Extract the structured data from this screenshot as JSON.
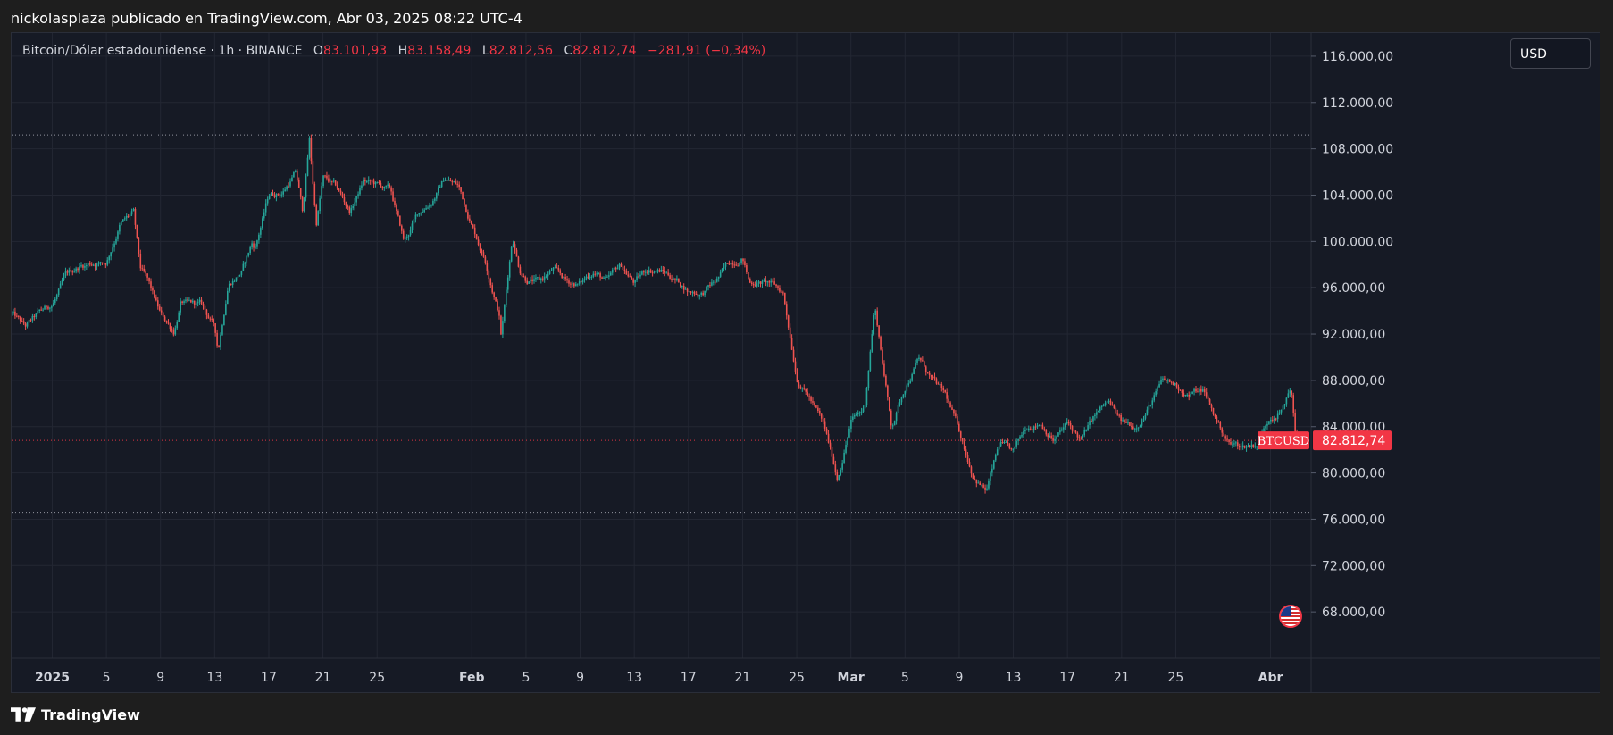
{
  "header": {
    "attribution": "nickolasplaza publicado en TradingView.com, Abr 03, 2025 08:22 UTC-4"
  },
  "legend": {
    "symbol": "Bitcoin/Dólar estadounidense · 1h · BINANCE",
    "open_label": "O",
    "open": "83.101,93",
    "high_label": "H",
    "high": "83.158,49",
    "low_label": "L",
    "low": "82.812,56",
    "close_label": "C",
    "close": "82.812,74",
    "change": "−281,91 (−0,34%)"
  },
  "currency_selector": {
    "label": "USD"
  },
  "price_tag": {
    "symbol": "BTCUSD",
    "price": "82.812,74",
    "value": 82812.74
  },
  "footer": {
    "brand": "TradingView"
  },
  "colors": {
    "up": "#26a69a",
    "down": "#ef5350",
    "price_tag": "#f23645",
    "background": "#161a25",
    "grid": "#232733",
    "axis_text": "#d1d4dc"
  },
  "chart_data": {
    "type": "candlestick",
    "ylim": [
      64000,
      118000
    ],
    "y_ticks": [
      {
        "value": 116000,
        "label": "116.000,00"
      },
      {
        "value": 112000,
        "label": "112.000,00"
      },
      {
        "value": 108000,
        "label": "108.000,00"
      },
      {
        "value": 104000,
        "label": "104.000,00"
      },
      {
        "value": 100000,
        "label": "100.000,00"
      },
      {
        "value": 96000,
        "label": "96.000,00"
      },
      {
        "value": 92000,
        "label": "92.000,00"
      },
      {
        "value": 88000,
        "label": "88.000,00"
      },
      {
        "value": 84000,
        "label": "84.000,00"
      },
      {
        "value": 80000,
        "label": "80.000,00"
      },
      {
        "value": 76000,
        "label": "76.000,00"
      },
      {
        "value": 72000,
        "label": "72.000,00"
      },
      {
        "value": 68000,
        "label": "68.000,00"
      }
    ],
    "x_range": [
      "2024-12-29",
      "2025-04-04"
    ],
    "x_ticks": [
      {
        "date": "2025-01-01",
        "label": "2025"
      },
      {
        "date": "2025-01-05",
        "label": "5"
      },
      {
        "date": "2025-01-09",
        "label": "9"
      },
      {
        "date": "2025-01-13",
        "label": "13"
      },
      {
        "date": "2025-01-17",
        "label": "17"
      },
      {
        "date": "2025-01-21",
        "label": "21"
      },
      {
        "date": "2025-01-25",
        "label": "25"
      },
      {
        "date": "2025-02-01",
        "label": "Feb"
      },
      {
        "date": "2025-02-05",
        "label": "5"
      },
      {
        "date": "2025-02-09",
        "label": "9"
      },
      {
        "date": "2025-02-13",
        "label": "13"
      },
      {
        "date": "2025-02-17",
        "label": "17"
      },
      {
        "date": "2025-02-21",
        "label": "21"
      },
      {
        "date": "2025-02-25",
        "label": "25"
      },
      {
        "date": "2025-03-01",
        "label": "Mar"
      },
      {
        "date": "2025-03-05",
        "label": "5"
      },
      {
        "date": "2025-03-09",
        "label": "9"
      },
      {
        "date": "2025-03-13",
        "label": "13"
      },
      {
        "date": "2025-03-17",
        "label": "17"
      },
      {
        "date": "2025-03-21",
        "label": "21"
      },
      {
        "date": "2025-03-25",
        "label": "25"
      },
      {
        "date": "2025-04-01",
        "label": "Abr"
      }
    ],
    "horizontal_lines": [
      {
        "value": 109200,
        "style": "dotted"
      },
      {
        "value": 76600,
        "style": "dotted"
      },
      {
        "value": 82812.74,
        "style": "dotted-red"
      }
    ],
    "price_path": [
      [
        "2024-12-29",
        93800
      ],
      [
        "2024-12-30",
        92500
      ],
      [
        "2024-12-31",
        93600
      ],
      [
        "2025-01-01",
        94500
      ],
      [
        "2025-01-02",
        96800
      ],
      [
        "2025-01-03",
        97800
      ],
      [
        "2025-01-04",
        98200
      ],
      [
        "2025-01-05",
        98300
      ],
      [
        "2025-01-06",
        101600
      ],
      [
        "2025-01-07",
        102400
      ],
      [
        "2025-01-07T12",
        97500
      ],
      [
        "2025-01-08",
        96500
      ],
      [
        "2025-01-09",
        93500
      ],
      [
        "2025-01-10",
        92200
      ],
      [
        "2025-01-10T12",
        94800
      ],
      [
        "2025-01-11",
        94500
      ],
      [
        "2025-01-12",
        94400
      ],
      [
        "2025-01-13",
        92500
      ],
      [
        "2025-01-13T06",
        90500
      ],
      [
        "2025-01-14",
        96500
      ],
      [
        "2025-01-15",
        97500
      ],
      [
        "2025-01-15T18",
        99800
      ],
      [
        "2025-01-16",
        99500
      ],
      [
        "2025-01-17",
        104000
      ],
      [
        "2025-01-18",
        104300
      ],
      [
        "2025-01-19",
        106000
      ],
      [
        "2025-01-19T12",
        102500
      ],
      [
        "2025-01-20",
        108800
      ],
      [
        "2025-01-20T12",
        101500
      ],
      [
        "2025-01-21",
        105500
      ],
      [
        "2025-01-22",
        104500
      ],
      [
        "2025-01-23",
        102500
      ],
      [
        "2025-01-24",
        105200
      ],
      [
        "2025-01-25",
        104800
      ],
      [
        "2025-01-26",
        104300
      ],
      [
        "2025-01-27",
        99800
      ],
      [
        "2025-01-28",
        102300
      ],
      [
        "2025-01-29",
        103500
      ],
      [
        "2025-01-30",
        105500
      ],
      [
        "2025-01-31",
        104800
      ],
      [
        "2025-02-01",
        101500
      ],
      [
        "2025-02-02",
        98500
      ],
      [
        "2025-02-03",
        94000
      ],
      [
        "2025-02-03T04",
        92000
      ],
      [
        "2025-02-04",
        100500
      ],
      [
        "2025-02-04T12",
        97800
      ],
      [
        "2025-02-05",
        97000
      ],
      [
        "2025-02-06",
        96500
      ],
      [
        "2025-02-07",
        97500
      ],
      [
        "2025-02-08",
        96400
      ],
      [
        "2025-02-09",
        96300
      ],
      [
        "2025-02-10",
        97500
      ],
      [
        "2025-02-11",
        96500
      ],
      [
        "2025-02-12",
        97800
      ],
      [
        "2025-02-13",
        96400
      ],
      [
        "2025-02-14",
        97600
      ],
      [
        "2025-02-15",
        97500
      ],
      [
        "2025-02-16",
        96800
      ],
      [
        "2025-02-17",
        95800
      ],
      [
        "2025-02-18",
        95600
      ],
      [
        "2025-02-19",
        96500
      ],
      [
        "2025-02-20",
        98000
      ],
      [
        "2025-02-21",
        98800
      ],
      [
        "2025-02-21T12",
        96500
      ],
      [
        "2025-02-22",
        96600
      ],
      [
        "2025-02-23",
        96400
      ],
      [
        "2025-02-24",
        95500
      ],
      [
        "2025-02-25",
        88500
      ],
      [
        "2025-02-26",
        86500
      ],
      [
        "2025-02-27",
        84000
      ],
      [
        "2025-02-28",
        79500
      ],
      [
        "2025-03-01",
        84500
      ],
      [
        "2025-03-02",
        85500
      ],
      [
        "2025-03-02T18",
        94500
      ],
      [
        "2025-03-03",
        92500
      ],
      [
        "2025-03-04",
        84000
      ],
      [
        "2025-03-05",
        87500
      ],
      [
        "2025-03-06",
        90000
      ],
      [
        "2025-03-07",
        88000
      ],
      [
        "2025-03-08",
        86500
      ],
      [
        "2025-03-09",
        83500
      ],
      [
        "2025-03-10",
        80000
      ],
      [
        "2025-03-11",
        78500
      ],
      [
        "2025-03-12",
        82500
      ],
      [
        "2025-03-13",
        81500
      ],
      [
        "2025-03-14",
        84000
      ],
      [
        "2025-03-15",
        84500
      ],
      [
        "2025-03-16",
        83000
      ],
      [
        "2025-03-17",
        84200
      ],
      [
        "2025-03-18",
        82800
      ],
      [
        "2025-03-19",
        84800
      ],
      [
        "2025-03-20",
        86000
      ],
      [
        "2025-03-21",
        84200
      ],
      [
        "2025-03-22",
        84000
      ],
      [
        "2025-03-23",
        85800
      ],
      [
        "2025-03-24",
        87800
      ],
      [
        "2025-03-25",
        87500
      ],
      [
        "2025-03-26",
        86800
      ],
      [
        "2025-03-27",
        87200
      ],
      [
        "2025-03-28",
        84500
      ],
      [
        "2025-03-29",
        82500
      ],
      [
        "2025-03-30",
        82300
      ],
      [
        "2025-03-31",
        82600
      ],
      [
        "2025-04-01",
        85000
      ],
      [
        "2025-04-02",
        85800
      ],
      [
        "2025-04-02T12",
        87600
      ],
      [
        "2025-04-02T20",
        83200
      ],
      [
        "2025-04-03",
        82812.74
      ]
    ]
  }
}
